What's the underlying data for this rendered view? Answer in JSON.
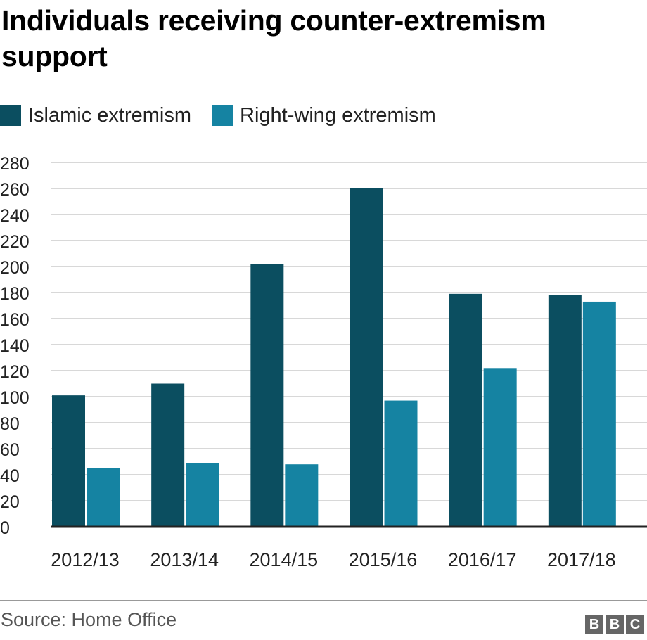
{
  "chart_data": {
    "type": "bar",
    "title": "Individuals receiving counter-extremism support",
    "categories": [
      "2012/13",
      "2013/14",
      "2014/15",
      "2015/16",
      "2016/17",
      "2017/18"
    ],
    "series": [
      {
        "name": "Islamic extremism",
        "color": "#0b4e60",
        "values": [
          101,
          110,
          202,
          260,
          179,
          178
        ]
      },
      {
        "name": "Right-wing extremism",
        "color": "#1583a2",
        "values": [
          45,
          49,
          48,
          97,
          122,
          173
        ]
      }
    ],
    "xlabel": "",
    "ylabel": "",
    "ylim": [
      0,
      280
    ],
    "yticks": [
      0,
      20,
      40,
      60,
      80,
      100,
      120,
      140,
      160,
      180,
      200,
      220,
      240,
      260,
      280
    ],
    "grid": true,
    "legend": "top-left",
    "gridline_color": "#cccccc",
    "axis_color": "#222222"
  },
  "footer": {
    "source": "Source: Home Office",
    "logo_letters": [
      "B",
      "B",
      "C"
    ]
  }
}
